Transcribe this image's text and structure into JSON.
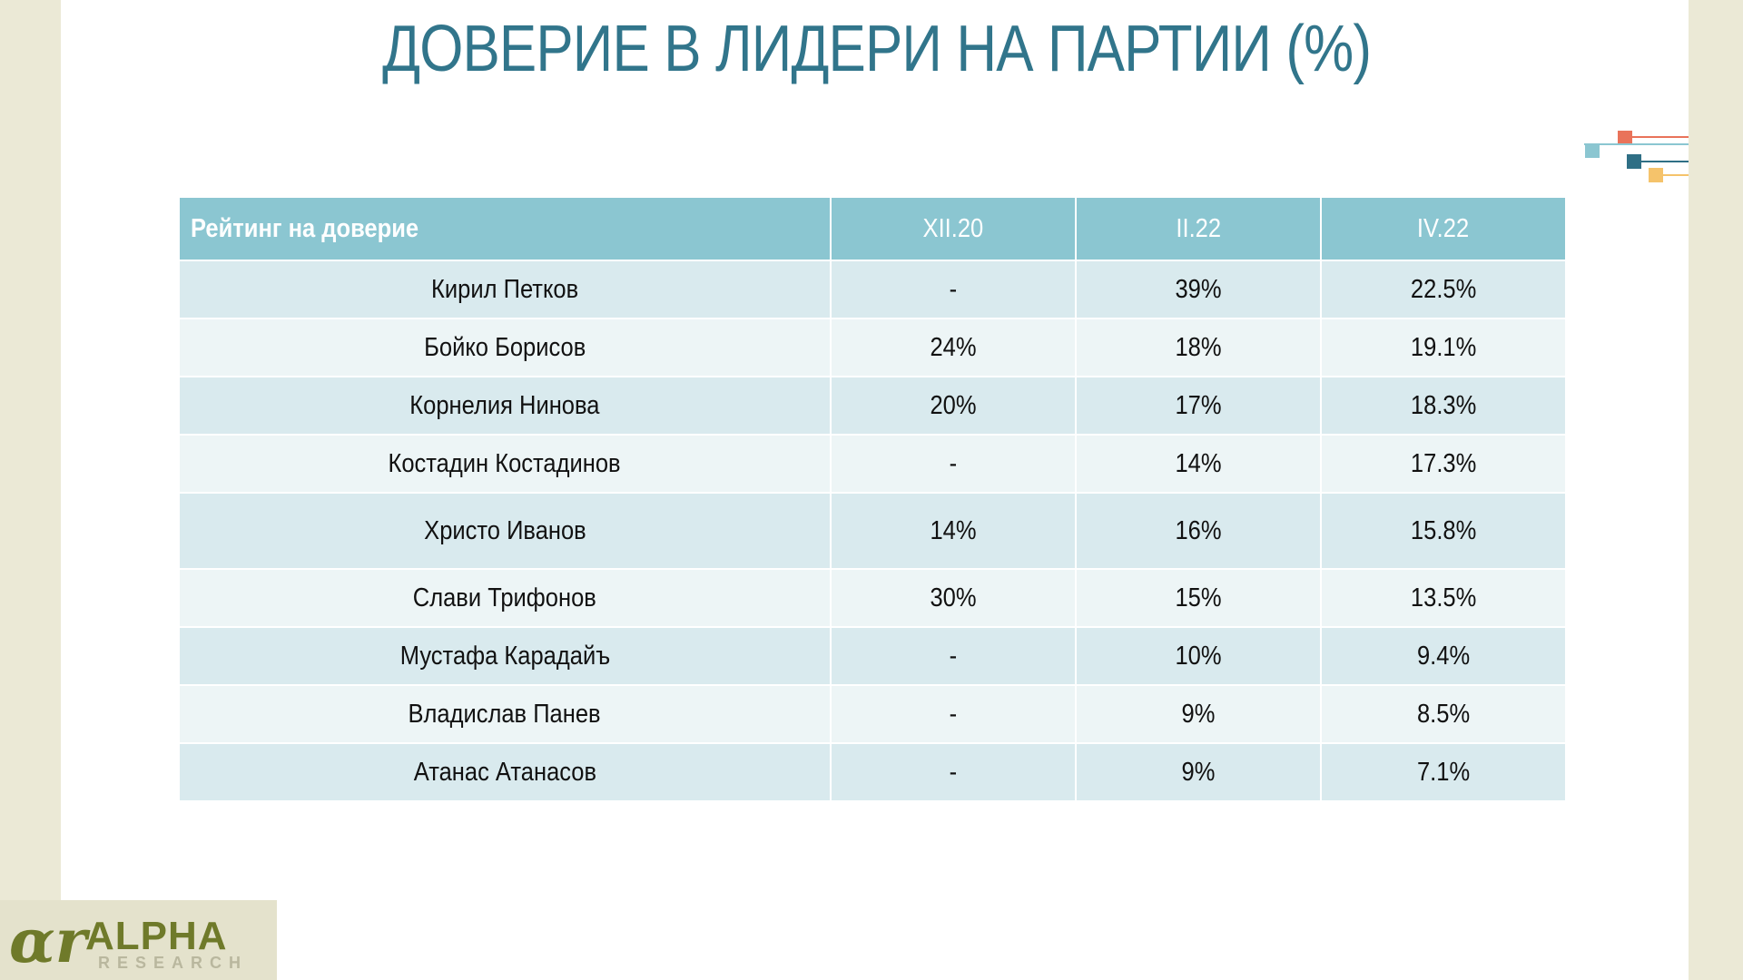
{
  "title": "ДОВЕРИЕ В ЛИДЕРИ НА ПАРТИИ (%)",
  "table": {
    "header": [
      "Рейтинг на доверие",
      "XII.20",
      "II.22",
      "IV.22"
    ],
    "rows": [
      [
        "Кирил Петков",
        "-",
        "39%",
        "22.5%"
      ],
      [
        "Бойко Борисов",
        "24%",
        "18%",
        "19.1%"
      ],
      [
        "Корнелия Нинова",
        "20%",
        "17%",
        "18.3%"
      ],
      [
        "Костадин Костадинов",
        "-",
        "14%",
        "17.3%"
      ],
      [
        "Христо Иванов",
        "14%",
        "16%",
        "15.8%"
      ],
      [
        "Слави Трифонов",
        "30%",
        "15%",
        "13.5%"
      ],
      [
        "Мустафа Карадайъ",
        "-",
        "10%",
        "9.4%"
      ],
      [
        "Владислав Панев",
        "-",
        "9%",
        "8.5%"
      ],
      [
        "Атанас Атанасов",
        "-",
        "9%",
        "7.1%"
      ]
    ]
  },
  "logo": {
    "mark": "ɑr",
    "name": "ALPHA",
    "sub": "RESEARCH"
  },
  "colors": {
    "title": "#31758b",
    "header": "#8bc6d1",
    "row_odd": "#d9eaee",
    "row_even": "#edf5f6",
    "logo": "#6f7a2a"
  }
}
